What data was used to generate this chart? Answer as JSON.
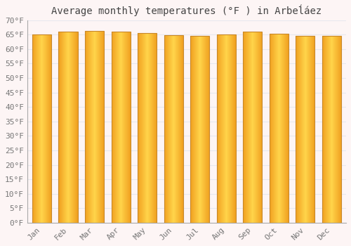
{
  "title": "Average monthly temperatures (°F ) in Arbeĺáez",
  "months": [
    "Jan",
    "Feb",
    "Mar",
    "Apr",
    "May",
    "Jun",
    "Jul",
    "Aug",
    "Sep",
    "Oct",
    "Nov",
    "Dec"
  ],
  "values": [
    65.0,
    66.0,
    66.2,
    66.0,
    65.5,
    64.8,
    64.6,
    65.0,
    66.0,
    65.3,
    64.7,
    64.7
  ],
  "ylim": [
    0,
    70
  ],
  "yticks": [
    0,
    5,
    10,
    15,
    20,
    25,
    30,
    35,
    40,
    45,
    50,
    55,
    60,
    65,
    70
  ],
  "ytick_labels": [
    "0°F",
    "5°F",
    "10°F",
    "15°F",
    "20°F",
    "25°F",
    "30°F",
    "35°F",
    "40°F",
    "45°F",
    "50°F",
    "55°F",
    "60°F",
    "65°F",
    "70°F"
  ],
  "background_color": "#fdf5f5",
  "plot_bg_color": "#fdf5f5",
  "grid_color": "#e8e8ee",
  "title_fontsize": 10,
  "tick_fontsize": 8,
  "bar_width": 0.72,
  "bar_color_center": "#FFD44A",
  "bar_color_edge": "#F0A020",
  "bar_border_color": "#C8882A"
}
